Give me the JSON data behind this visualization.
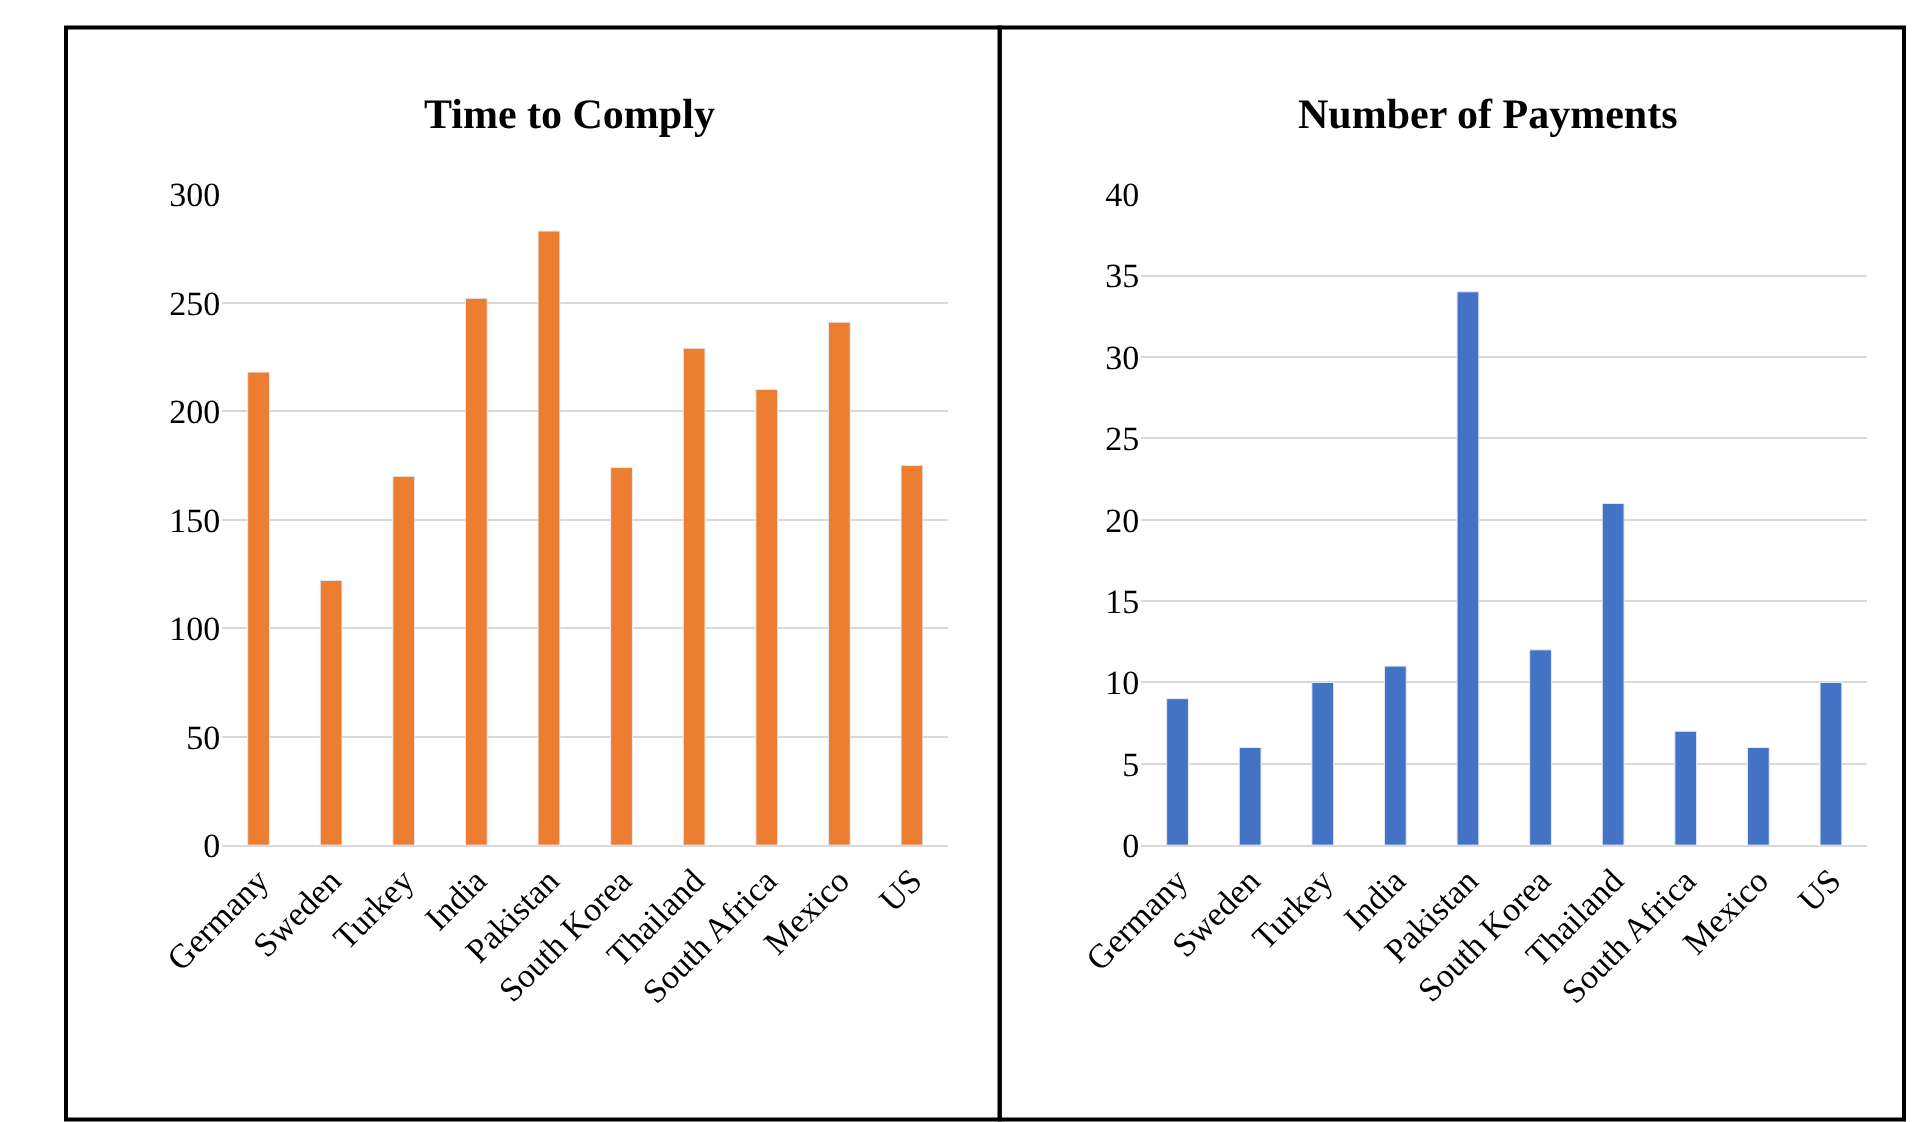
{
  "chart_data": [
    {
      "type": "bar",
      "title": "Time to Comply",
      "categories": [
        "Germany",
        "Sweden",
        "Turkey",
        "India",
        "Pakistan",
        "South Korea",
        "Thailand",
        "South Africa",
        "Mexico",
        "US"
      ],
      "values": [
        218,
        122,
        170,
        252,
        283,
        174,
        229,
        210,
        241,
        175
      ],
      "color": "#ed7d31",
      "ylim": [
        0,
        300
      ],
      "yticks": [
        0,
        50,
        100,
        150,
        200,
        250,
        300
      ],
      "grid": "y"
    },
    {
      "type": "bar",
      "title": "Number of Payments",
      "categories": [
        "Germany",
        "Sweden",
        "Turkey",
        "India",
        "Pakistan",
        "South Korea",
        "Thailand",
        "South Africa",
        "Mexico",
        "US"
      ],
      "values": [
        9,
        6,
        10,
        11,
        34,
        12,
        21,
        7,
        6,
        10
      ],
      "color": "#4472c4",
      "ylim": [
        0,
        40
      ],
      "yticks": [
        0,
        5,
        10,
        15,
        20,
        25,
        30,
        35,
        40
      ],
      "grid": "y"
    }
  ]
}
